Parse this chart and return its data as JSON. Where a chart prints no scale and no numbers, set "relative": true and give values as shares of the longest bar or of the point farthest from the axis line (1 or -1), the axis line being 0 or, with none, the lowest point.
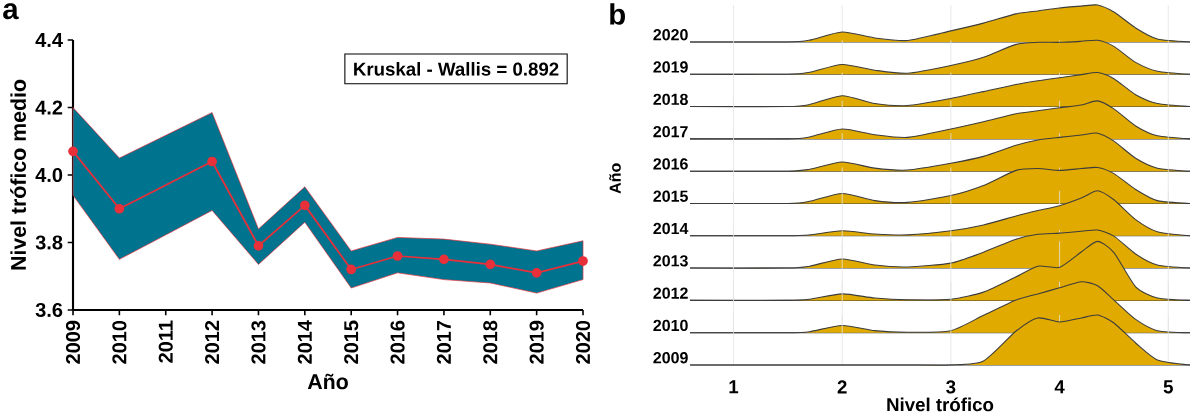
{
  "chart_data": [
    {
      "type": "line",
      "title": "a",
      "xlabel": "Año",
      "ylabel": "Nivel trófico medio",
      "annotations": [
        "Kruskal - Wallis = 0.892"
      ],
      "marker": "circle",
      "line_style": "solid",
      "xlim": [
        2009,
        2020
      ],
      "xticks": [
        2009,
        2010,
        2011,
        2012,
        2013,
        2014,
        2015,
        2016,
        2017,
        2018,
        2019,
        2020
      ],
      "ylim": [
        3.6,
        4.4
      ],
      "yticks": [
        3.6,
        3.8,
        {
          "value": 4.0,
          "label": "4.0"
        },
        4.2,
        4.4
      ],
      "series": [
        {
          "color": "#e8303a",
          "x": [
            2009,
            2010,
            2012,
            2013,
            2014,
            2015,
            2016,
            2017,
            2018,
            2019,
            2020
          ],
          "values": [
            4.07,
            3.9,
            4.04,
            3.79,
            3.91,
            3.72,
            3.76,
            3.75,
            3.735,
            3.71,
            3.745
          ],
          "lower": [
            3.94,
            3.75,
            3.895,
            3.735,
            3.86,
            3.665,
            3.71,
            3.69,
            3.68,
            3.65,
            3.69
          ],
          "upper": [
            4.2,
            4.05,
            4.185,
            3.84,
            3.965,
            3.775,
            3.815,
            3.81,
            3.795,
            3.775,
            3.805
          ]
        }
      ]
    },
    {
      "type": "area",
      "title": "b",
      "relative": true,
      "grid": "x",
      "tick_labels": false,
      "x": [
        0.6,
        1.5,
        1.7,
        2.0,
        2.3,
        2.6,
        3.0,
        3.3,
        3.6,
        3.8,
        4.0,
        4.2,
        4.35,
        4.5,
        4.7,
        4.9,
        5.2
      ],
      "xlim": [
        0.6,
        5.2
      ],
      "xticks": [
        1,
        2,
        3,
        4,
        5
      ],
      "series": [
        {
          "name": "2020",
          "color": "#e0aa00",
          "values": [
            0,
            0,
            0.05,
            0.27,
            0.11,
            0.04,
            0.3,
            0.51,
            0.76,
            0.84,
            0.92,
            0.97,
            1,
            0.81,
            0.38,
            0.08,
            0
          ]
        }
      ]
    },
    {
      "type": "area",
      "relative": true,
      "grid": "x",
      "tick_labels": false,
      "x": [
        0.6,
        1.5,
        1.7,
        2.0,
        2.3,
        2.6,
        3.0,
        3.3,
        3.6,
        3.8,
        4.0,
        4.2,
        4.35,
        4.5,
        4.7,
        4.9,
        5.2
      ],
      "xlim": [
        0.6,
        5.2
      ],
      "xticks": [
        1,
        2,
        3,
        4,
        5
      ],
      "series": [
        {
          "name": "2019",
          "color": "#e0aa00",
          "values": [
            0,
            0,
            0.06,
            0.29,
            0.12,
            0.03,
            0.26,
            0.5,
            0.88,
            0.94,
            0.94,
            0.97,
            1,
            0.82,
            0.35,
            0.09,
            0
          ]
        }
      ]
    },
    {
      "type": "area",
      "relative": true,
      "grid": "x",
      "tick_labels": false,
      "x": [
        0.6,
        1.5,
        1.7,
        2.0,
        2.3,
        2.6,
        3.0,
        3.3,
        3.6,
        3.8,
        4.0,
        4.2,
        4.35,
        4.5,
        4.7,
        4.9,
        5.2
      ],
      "xlim": [
        0.6,
        5.2
      ],
      "xticks": [
        1,
        2,
        3,
        4,
        5
      ],
      "series": [
        {
          "name": "2018",
          "color": "#e0aa00",
          "values": [
            0,
            0,
            0.06,
            0.32,
            0.09,
            0.03,
            0.24,
            0.44,
            0.65,
            0.76,
            0.85,
            0.94,
            1,
            0.82,
            0.35,
            0.09,
            0
          ]
        }
      ]
    },
    {
      "type": "area",
      "relative": true,
      "grid": "x",
      "tick_labels": false,
      "x": [
        0.6,
        1.5,
        1.7,
        2.0,
        2.3,
        2.6,
        3.0,
        3.3,
        3.6,
        3.8,
        4.0,
        4.2,
        4.35,
        4.5,
        4.7,
        4.9,
        5.2
      ],
      "xlim": [
        0.6,
        5.2
      ],
      "xticks": [
        1,
        2,
        3,
        4,
        5
      ],
      "series": [
        {
          "name": "2017",
          "color": "#e0aa00",
          "values": [
            0,
            0,
            0.05,
            0.26,
            0.11,
            0.04,
            0.26,
            0.45,
            0.66,
            0.74,
            0.82,
            0.89,
            1,
            0.79,
            0.34,
            0.08,
            0
          ]
        }
      ]
    },
    {
      "type": "area",
      "relative": true,
      "grid": "x",
      "tick_labels": false,
      "x": [
        0.6,
        1.5,
        1.7,
        2.0,
        2.3,
        2.6,
        3.0,
        3.3,
        3.6,
        3.8,
        4.0,
        4.2,
        4.35,
        4.5,
        4.7,
        4.9,
        5.2
      ],
      "xlim": [
        0.6,
        5.2
      ],
      "xticks": [
        1,
        2,
        3,
        4,
        5
      ],
      "series": [
        {
          "name": "2016",
          "color": "#e0aa00",
          "values": [
            0,
            0,
            0.05,
            0.24,
            0.08,
            0.03,
            0.21,
            0.39,
            0.68,
            0.82,
            0.89,
            0.95,
            1,
            0.79,
            0.34,
            0.08,
            0
          ]
        }
      ]
    },
    {
      "type": "area",
      "ylabel": "Año",
      "relative": true,
      "grid": "x",
      "tick_labels": false,
      "x": [
        0.6,
        1.5,
        1.7,
        2.0,
        2.3,
        2.6,
        3.0,
        3.3,
        3.6,
        3.8,
        4.0,
        4.2,
        4.35,
        4.5,
        4.7,
        4.9,
        5.2
      ],
      "xlim": [
        0.6,
        5.2
      ],
      "xticks": [
        1,
        2,
        3,
        4,
        5
      ],
      "series": [
        {
          "name": "2015",
          "color": "#e0aa00",
          "values": [
            0,
            0,
            0.06,
            0.28,
            0.08,
            0.03,
            0.22,
            0.5,
            0.92,
            0.97,
            0.92,
            0.97,
            1,
            0.83,
            0.39,
            0.08,
            0
          ]
        }
      ]
    },
    {
      "type": "area",
      "relative": true,
      "grid": "x",
      "tick_labels": false,
      "x": [
        0.6,
        1.5,
        1.7,
        2.0,
        2.3,
        2.6,
        3.0,
        3.3,
        3.6,
        3.8,
        4.0,
        4.2,
        4.35,
        4.5,
        4.7,
        4.9,
        5.2
      ],
      "xlim": [
        0.6,
        5.2
      ],
      "xticks": [
        1,
        2,
        3,
        4,
        5
      ],
      "series": [
        {
          "name": "2014",
          "color": "#e0aa00",
          "values": [
            0,
            0,
            0.02,
            0.11,
            0.04,
            0.02,
            0.11,
            0.24,
            0.44,
            0.56,
            0.67,
            0.84,
            1,
            0.8,
            0.36,
            0.09,
            0
          ]
        }
      ]
    },
    {
      "type": "area",
      "relative": true,
      "grid": "x",
      "tick_labels": false,
      "x": [
        0.6,
        1.5,
        1.7,
        2.0,
        2.3,
        2.6,
        3.0,
        3.3,
        3.6,
        3.8,
        4.0,
        4.2,
        4.35,
        4.5,
        4.7,
        4.9,
        5.2
      ],
      "xlim": [
        0.6,
        5.2
      ],
      "xticks": [
        1,
        2,
        3,
        4,
        5
      ],
      "series": [
        {
          "name": "2013",
          "color": "#e0aa00",
          "values": [
            0,
            0,
            0.05,
            0.24,
            0.08,
            0.03,
            0.13,
            0.42,
            0.76,
            0.89,
            0.92,
            0.97,
            1,
            0.84,
            0.37,
            0.08,
            0
          ]
        }
      ]
    },
    {
      "type": "area",
      "relative": true,
      "grid": "x",
      "tick_labels": false,
      "x": [
        0.6,
        1.5,
        1.7,
        2.0,
        2.3,
        2.6,
        3.0,
        3.3,
        3.6,
        3.8,
        4.0,
        4.2,
        4.35,
        4.5,
        4.7,
        4.9,
        5.2
      ],
      "xlim": [
        0.6,
        5.2
      ],
      "xticks": [
        1,
        2,
        3,
        4,
        5
      ],
      "series": [
        {
          "name": "2012",
          "color": "#e0aa00",
          "values": [
            0,
            0,
            0.02,
            0.11,
            0.04,
            0.01,
            0.02,
            0.14,
            0.4,
            0.58,
            0.56,
            0.82,
            1,
            0.81,
            0.23,
            0.04,
            0
          ]
        }
      ]
    },
    {
      "type": "area",
      "relative": true,
      "grid": "x",
      "tick_labels": false,
      "x": [
        0.6,
        1.5,
        1.7,
        2.0,
        2.3,
        2.6,
        3.0,
        3.3,
        3.6,
        3.8,
        4.0,
        4.2,
        4.35,
        4.5,
        4.7,
        4.9,
        5.2
      ],
      "xlim": [
        0.6,
        5.2
      ],
      "xticks": [
        1,
        2,
        3,
        4,
        5
      ],
      "series": [
        {
          "name": "2010",
          "color": "#e0aa00",
          "values": [
            0,
            0,
            0.02,
            0.14,
            0.04,
            0.01,
            0.04,
            0.34,
            0.64,
            0.76,
            0.88,
            1,
            0.92,
            0.64,
            0.26,
            0.04,
            0
          ]
        }
      ]
    },
    {
      "type": "area",
      "xlabel": "Nivel trófico",
      "relative": true,
      "grid": "x",
      "x": [
        0.6,
        1.5,
        1.7,
        2.0,
        2.3,
        2.6,
        3.0,
        3.3,
        3.6,
        3.8,
        4.0,
        4.2,
        4.35,
        4.5,
        4.7,
        4.9,
        5.2
      ],
      "xlim": [
        0.6,
        5.2
      ],
      "xticks": [
        1,
        2,
        3,
        4,
        5
      ],
      "series": [
        {
          "name": "2009",
          "color": "#e0aa00",
          "values": [
            0,
            0,
            0,
            0,
            0,
            0,
            0,
            0.08,
            0.68,
            0.94,
            0.86,
            0.94,
            1,
            0.84,
            0.44,
            0.1,
            0
          ]
        }
      ]
    }
  ]
}
